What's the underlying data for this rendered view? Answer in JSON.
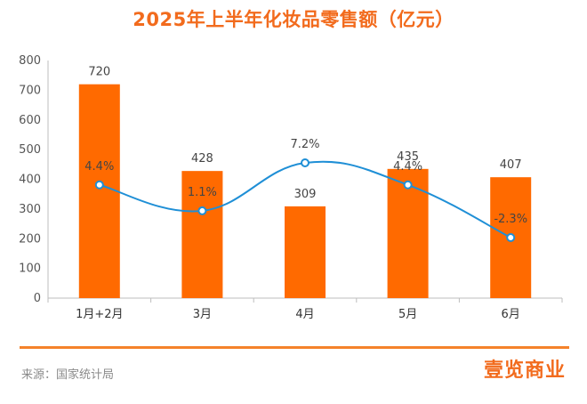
{
  "title": "2025年上半年化妆品零售额（亿元）",
  "chart_data": {
    "type": "bar",
    "categories": [
      "1月+2月",
      "3月",
      "4月",
      "5月",
      "6月"
    ],
    "bar_values": [
      720,
      428,
      309,
      435,
      407
    ],
    "line_values": [
      4.4,
      1.1,
      7.2,
      4.4,
      -2.3
    ],
    "line_labels": [
      "4.4%",
      "1.1%",
      "7.2%",
      "4.4%",
      "-2.3%"
    ],
    "ylim": [
      0,
      800
    ],
    "yticks": [
      0,
      100,
      200,
      300,
      400,
      500,
      600,
      700,
      800
    ],
    "grid": false,
    "bar_color": "#ff6a00",
    "line_color": "#1f8fd6"
  },
  "source": "来源：国家统计局",
  "brand": "壹览商业"
}
